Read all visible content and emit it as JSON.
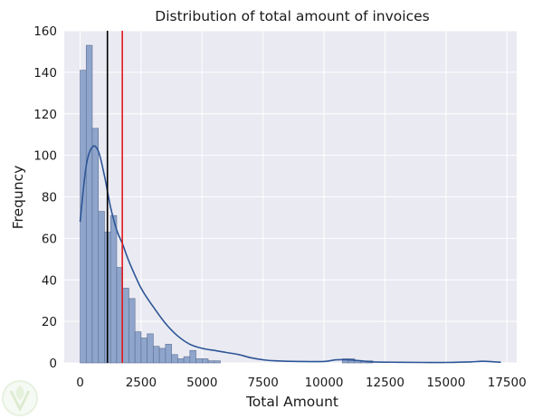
{
  "chart_data": {
    "type": "bar",
    "title": "Distribution of total amount of invoices",
    "xlabel": "Total Amount",
    "ylabel": "Frequncy",
    "xlim": [
      -650,
      17900
    ],
    "ylim": [
      0,
      160
    ],
    "xticks": [
      0,
      2500,
      5000,
      7500,
      10000,
      12500,
      15000,
      17500
    ],
    "yticks": [
      0,
      20,
      40,
      60,
      80,
      100,
      120,
      140,
      160
    ],
    "grid": true,
    "legend": "none",
    "bin_start": 0,
    "bin_width": 250,
    "counts": [
      141,
      153,
      113,
      73,
      63,
      71,
      46,
      36,
      31,
      15,
      12,
      14,
      8,
      7,
      9,
      4,
      2,
      3,
      6,
      2,
      2,
      1,
      1,
      0,
      0,
      0,
      0,
      0,
      0,
      0,
      0,
      0,
      0,
      0,
      0,
      0,
      0,
      0,
      0,
      0,
      0,
      0,
      0,
      2,
      2,
      1,
      1,
      1
    ],
    "kde": {
      "name": "density",
      "x": [
        0,
        250,
        500,
        750,
        1000,
        1250,
        1500,
        1750,
        2000,
        2500,
        3000,
        3500,
        4000,
        4500,
        5000,
        5500,
        6000,
        6500,
        7000,
        7500,
        8000,
        9000,
        10000,
        10500,
        11000,
        11500,
        12000,
        13000,
        14000,
        15000,
        16000,
        16500,
        17000,
        17250
      ],
      "y": [
        68,
        95,
        104,
        102,
        90,
        75,
        64,
        57,
        49,
        36,
        27,
        19,
        13,
        9,
        7,
        6,
        5,
        4,
        2.5,
        1.5,
        1,
        0.7,
        0.7,
        1.5,
        1.5,
        1,
        0.5,
        0.3,
        0.2,
        0.2,
        0.5,
        0.8,
        0.5,
        0.3
      ]
    },
    "vlines": [
      {
        "name": "median",
        "x": 1120,
        "color": "#000000"
      },
      {
        "name": "mean",
        "x": 1730,
        "color": "#e31a1c"
      }
    ],
    "colors": {
      "background": "#eaeaf2",
      "grid": "#ffffff",
      "bar_fill": "#8fa5cb",
      "bar_edge": "#5d6f94",
      "kde": "#2c5596"
    }
  }
}
